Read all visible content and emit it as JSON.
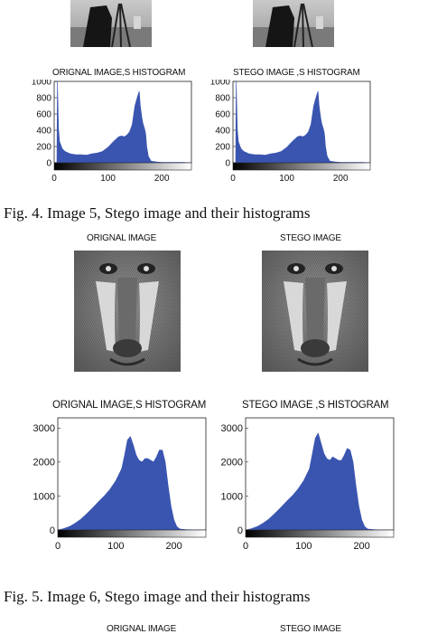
{
  "fig4": {
    "panel_titles": [
      "ORIGNAL IMAGE,S HISTOGRAM",
      "STEGO IMAGE ,S HISTOGRAM"
    ],
    "caption": "Fig. 4.   Image 5, Stego image and their histograms"
  },
  "fig5": {
    "image_titles": [
      "ORIGNAL IMAGE",
      "STEGO IMAGE"
    ],
    "panel_titles": [
      "ORIGNAL IMAGE,S HISTOGRAM",
      "STEGO IMAGE ,S HISTOGRAM"
    ],
    "caption": "Fig. 5.   Image 6, Stego image and their histograms"
  },
  "fig6_partial": {
    "image_titles": [
      "ORIGNAL IMAGE",
      "STEGO IMAGE"
    ]
  },
  "colors": {
    "bar": "#3a55b0"
  },
  "chart_data": [
    {
      "type": "area",
      "title": "ORIGNAL IMAGE,S HISTOGRAM",
      "xlim": [
        0,
        255
      ],
      "ylim": [
        0,
        1000
      ],
      "xticks": [
        "0",
        "100",
        "200"
      ],
      "yticks": [
        "0",
        "200",
        "400",
        "600",
        "800",
        "1000"
      ],
      "x": [
        0,
        5,
        6,
        8,
        10,
        15,
        20,
        30,
        40,
        50,
        60,
        70,
        80,
        90,
        100,
        110,
        120,
        125,
        130,
        135,
        140,
        145,
        150,
        155,
        158,
        160,
        163,
        165,
        168,
        170,
        172,
        175,
        180,
        190,
        200,
        210,
        220,
        230,
        240,
        255
      ],
      "y": [
        0,
        0,
        1000,
        420,
        260,
        175,
        140,
        110,
        100,
        100,
        95,
        110,
        120,
        140,
        190,
        260,
        320,
        330,
        320,
        340,
        380,
        470,
        700,
        820,
        880,
        700,
        550,
        480,
        420,
        360,
        200,
        80,
        20,
        10,
        5,
        5,
        5,
        5,
        5,
        0
      ]
    },
    {
      "type": "area",
      "title": "STEGO IMAGE ,S HISTOGRAM",
      "xlim": [
        0,
        255
      ],
      "ylim": [
        0,
        1000
      ],
      "xticks": [
        "0",
        "100",
        "200"
      ],
      "yticks": [
        "0",
        "200",
        "400",
        "600",
        "800",
        "1000"
      ],
      "x": [
        0,
        5,
        6,
        8,
        10,
        15,
        20,
        30,
        40,
        50,
        60,
        70,
        80,
        90,
        100,
        110,
        120,
        125,
        130,
        135,
        140,
        145,
        150,
        155,
        158,
        160,
        163,
        165,
        168,
        170,
        172,
        175,
        180,
        190,
        200,
        210,
        220,
        230,
        240,
        255
      ],
      "y": [
        0,
        0,
        1000,
        420,
        260,
        175,
        140,
        110,
        100,
        100,
        95,
        110,
        120,
        140,
        190,
        260,
        320,
        330,
        320,
        340,
        380,
        470,
        700,
        820,
        880,
        700,
        550,
        480,
        420,
        360,
        200,
        80,
        20,
        10,
        5,
        5,
        5,
        5,
        5,
        0
      ]
    },
    {
      "type": "area",
      "title": "ORIGNAL IMAGE,S HISTOGRAM",
      "xlim": [
        0,
        255
      ],
      "ylim": [
        0,
        3300
      ],
      "xticks": [
        "0",
        "100",
        "200"
      ],
      "yticks": [
        "0",
        "1000",
        "2000",
        "3000"
      ],
      "x": [
        0,
        10,
        20,
        30,
        40,
        50,
        60,
        70,
        80,
        90,
        100,
        110,
        115,
        120,
        125,
        130,
        135,
        140,
        145,
        150,
        155,
        160,
        165,
        170,
        175,
        180,
        185,
        190,
        195,
        200,
        205,
        210,
        220,
        240,
        255
      ],
      "y": [
        0,
        40,
        100,
        200,
        320,
        480,
        650,
        830,
        1000,
        1200,
        1450,
        1800,
        2200,
        2650,
        2750,
        2500,
        2200,
        2050,
        2000,
        2100,
        2100,
        2050,
        2000,
        2150,
        2350,
        2350,
        2000,
        1300,
        700,
        300,
        100,
        30,
        10,
        0,
        0
      ]
    },
    {
      "type": "area",
      "title": "STEGO IMAGE ,S HISTOGRAM",
      "xlim": [
        0,
        255
      ],
      "ylim": [
        0,
        3300
      ],
      "xticks": [
        "0",
        "100",
        "200"
      ],
      "yticks": [
        "0",
        "1000",
        "2000",
        "3000"
      ],
      "x": [
        0,
        10,
        20,
        30,
        40,
        50,
        60,
        70,
        80,
        90,
        100,
        110,
        115,
        120,
        125,
        130,
        135,
        140,
        145,
        150,
        155,
        160,
        165,
        170,
        175,
        180,
        185,
        190,
        195,
        200,
        205,
        210,
        220,
        240,
        255
      ],
      "y": [
        0,
        40,
        100,
        200,
        320,
        480,
        650,
        830,
        1000,
        1200,
        1450,
        1800,
        2250,
        2700,
        2850,
        2550,
        2250,
        2100,
        2050,
        2150,
        2100,
        2050,
        2050,
        2200,
        2400,
        2350,
        2000,
        1300,
        700,
        300,
        100,
        30,
        10,
        0,
        0
      ]
    }
  ]
}
